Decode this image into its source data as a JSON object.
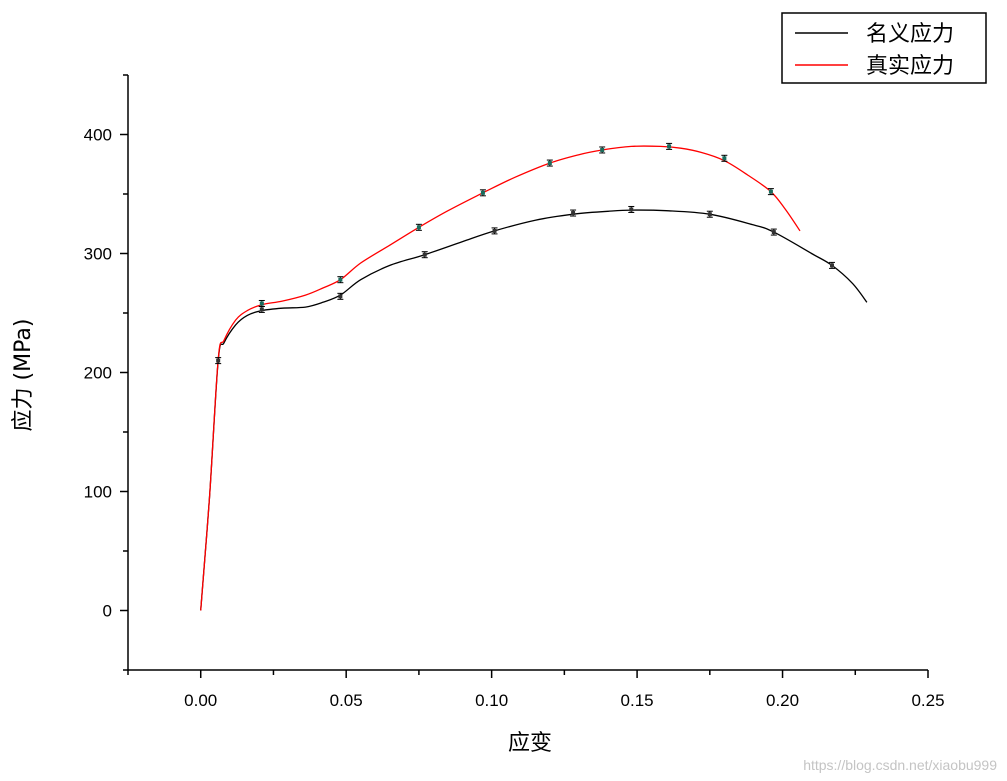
{
  "chart_data": {
    "type": "line",
    "xlabel": "应变",
    "ylabel": "应力 (MPa)",
    "xlim": [
      -0.025,
      0.25
    ],
    "ylim": [
      -50,
      450
    ],
    "x_ticks": [
      0.0,
      0.05,
      0.1,
      0.15,
      0.2,
      0.25
    ],
    "x_tick_labels": [
      "0.00",
      "0.05",
      "0.10",
      "0.15",
      "0.20",
      "0.25"
    ],
    "y_ticks": [
      0,
      100,
      200,
      300,
      400
    ],
    "y_tick_labels": [
      "0",
      "100",
      "200",
      "300",
      "400"
    ],
    "grid": false,
    "legend_position": "top-right",
    "series": [
      {
        "name": "名义应力",
        "color": "#000000",
        "x": [
          0.0,
          0.003,
          0.006,
          0.008,
          0.012,
          0.016,
          0.021,
          0.028,
          0.036,
          0.042,
          0.048,
          0.055,
          0.065,
          0.077,
          0.09,
          0.101,
          0.115,
          0.128,
          0.14,
          0.148,
          0.16,
          0.175,
          0.19,
          0.197,
          0.21,
          0.217,
          0.224,
          0.229
        ],
        "y": [
          0,
          95,
          210,
          225,
          240,
          248,
          252,
          254,
          255,
          259,
          265,
          278,
          290,
          299,
          310,
          319,
          328,
          333,
          335.5,
          336.5,
          336,
          333,
          324,
          318,
          300,
          290,
          275,
          259
        ],
        "markers_x": [
          0.006,
          0.021,
          0.048,
          0.077,
          0.101,
          0.128,
          0.148,
          0.175,
          0.197,
          0.217
        ],
        "markers_y": [
          210,
          253,
          264,
          299,
          319,
          334,
          337,
          333,
          318,
          290
        ]
      },
      {
        "name": "真实应力",
        "color": "#ff0000",
        "x": [
          0.0,
          0.003,
          0.006,
          0.008,
          0.012,
          0.016,
          0.021,
          0.028,
          0.036,
          0.042,
          0.048,
          0.055,
          0.065,
          0.075,
          0.085,
          0.097,
          0.108,
          0.12,
          0.13,
          0.138,
          0.148,
          0.158,
          0.165,
          0.172,
          0.18,
          0.188,
          0.196,
          0.201,
          0.206
        ],
        "y": [
          0,
          95,
          211,
          227,
          244,
          252,
          257,
          260,
          265,
          271,
          278,
          292,
          307,
          322,
          336,
          351,
          364,
          376,
          383,
          387,
          390,
          390,
          388.5,
          385,
          378,
          366,
          352,
          337,
          319
        ],
        "markers_x": [
          0.021,
          0.048,
          0.075,
          0.097,
          0.12,
          0.138,
          0.161,
          0.18,
          0.196
        ],
        "markers_y": [
          258,
          278,
          322,
          351,
          376,
          387,
          390,
          380,
          352
        ]
      }
    ]
  },
  "watermark": "https://blog.csdn.net/xiaobu999"
}
